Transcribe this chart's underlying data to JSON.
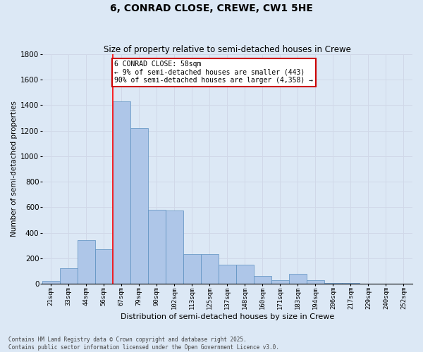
{
  "title": "6, CONRAD CLOSE, CREWE, CW1 5HE",
  "subtitle": "Size of property relative to semi-detached houses in Crewe",
  "xlabel": "Distribution of semi-detached houses by size in Crewe",
  "ylabel": "Number of semi-detached properties",
  "categories": [
    "21sqm",
    "33sqm",
    "44sqm",
    "56sqm",
    "67sqm",
    "79sqm",
    "90sqm",
    "102sqm",
    "113sqm",
    "125sqm",
    "137sqm",
    "148sqm",
    "160sqm",
    "171sqm",
    "183sqm",
    "194sqm",
    "206sqm",
    "217sqm",
    "229sqm",
    "240sqm",
    "252sqm"
  ],
  "values": [
    20,
    120,
    340,
    270,
    1430,
    1220,
    580,
    575,
    230,
    230,
    150,
    150,
    60,
    30,
    80,
    30,
    5,
    3,
    2,
    2,
    2
  ],
  "bar_color": "#aec6e8",
  "bar_edge_color": "#5a8fc0",
  "grid_color": "#d0d8e8",
  "background_color": "#dce8f5",
  "red_line_x": 3.5,
  "annotation_text": "6 CONRAD CLOSE: 58sqm\n← 9% of semi-detached houses are smaller (443)\n90% of semi-detached houses are larger (4,358) →",
  "annotation_box_color": "#ffffff",
  "annotation_box_edge": "#cc0000",
  "ylim": [
    0,
    1800
  ],
  "yticks": [
    0,
    200,
    400,
    600,
    800,
    1000,
    1200,
    1400,
    1600,
    1800
  ],
  "footer_line1": "Contains HM Land Registry data © Crown copyright and database right 2025.",
  "footer_line2": "Contains public sector information licensed under the Open Government Licence v3.0."
}
